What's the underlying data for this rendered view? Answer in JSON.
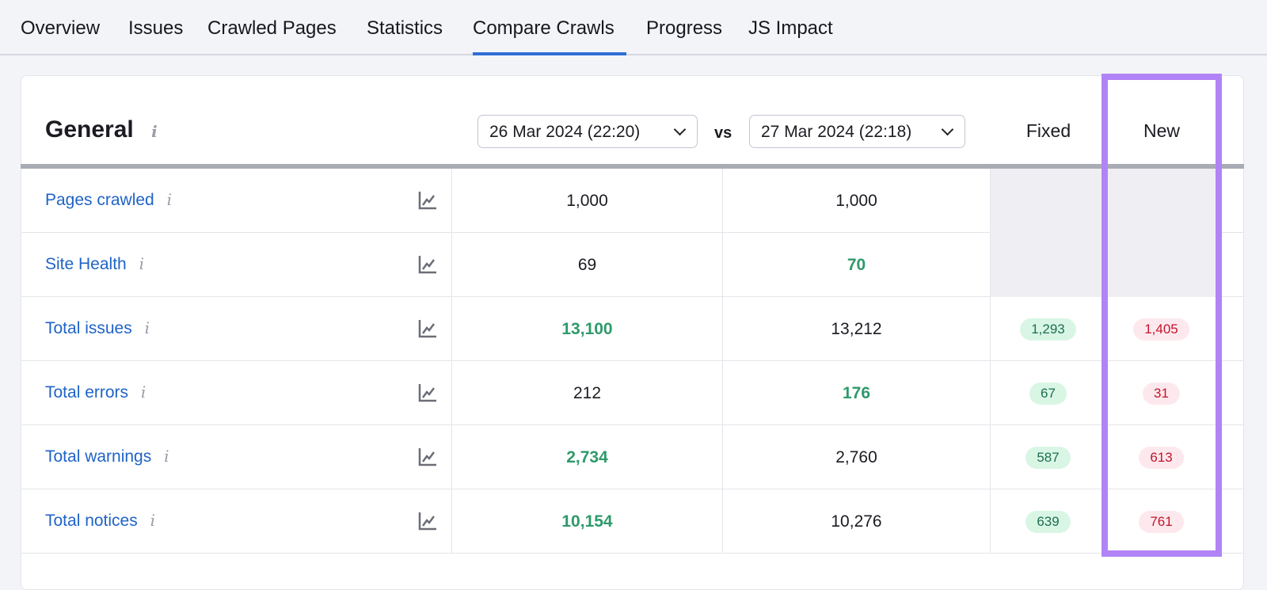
{
  "tabs": [
    "Overview",
    "Issues",
    "Crawled Pages",
    "Statistics",
    "Compare Crawls",
    "Progress",
    "JS Impact"
  ],
  "active_tab": "Compare Crawls",
  "section": {
    "title": "General",
    "info_icon": "i"
  },
  "date_a": "26 Mar 2024 (22:20)",
  "vs": "vs",
  "date_b": "27 Mar 2024 (22:18)",
  "col_fixed": "Fixed",
  "col_new": "New",
  "rows": [
    {
      "label": "Pages crawled",
      "a": "1,000",
      "b": "1,000",
      "fixed": "",
      "new": ""
    },
    {
      "label": "Site Health",
      "a": "69",
      "b": "70",
      "fixed": "",
      "new": ""
    },
    {
      "label": "Total issues",
      "a": "13,100",
      "b": "13,212",
      "fixed": "1,293",
      "new": "1,405"
    },
    {
      "label": "Total errors",
      "a": "212",
      "b": "176",
      "fixed": "67",
      "new": "31"
    },
    {
      "label": "Total warnings",
      "a": "2,734",
      "b": "2,760",
      "fixed": "587",
      "new": "613"
    },
    {
      "label": "Total notices",
      "a": "10,154",
      "b": "10,276",
      "fixed": "639",
      "new": "761"
    }
  ],
  "highlight": {
    "a": [
      false,
      false,
      true,
      false,
      true,
      true
    ],
    "b": [
      false,
      true,
      false,
      true,
      false,
      false
    ]
  },
  "colors": {
    "accent": "#2f6fd6",
    "highlight": "#b184f6",
    "better": "#2e9a6a",
    "new": "#c4142c"
  }
}
